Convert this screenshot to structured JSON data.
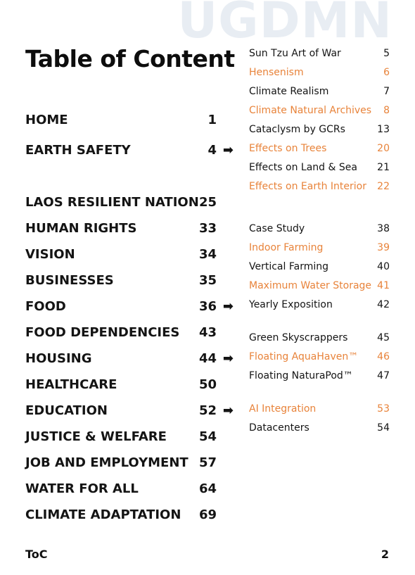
{
  "watermark": "UGDMN",
  "title": "Table of Content",
  "arrow_glyph": "➡",
  "left_items": [
    {
      "label": "HOME",
      "page": "1"
    },
    {
      "label": "EARTH SAFETY",
      "page": "4"
    },
    {
      "label": "LAOS RESILIENT NATION",
      "page": "25"
    },
    {
      "label": "HUMAN RIGHTS",
      "page": "33"
    },
    {
      "label": "VISION",
      "page": "34"
    },
    {
      "label": "BUSINESSES",
      "page": "35"
    },
    {
      "label": "FOOD",
      "page": "36"
    },
    {
      "label": "FOOD DEPENDENCIES",
      "page": "43"
    },
    {
      "label": "HOUSING",
      "page": "44"
    },
    {
      "label": "HEALTHCARE",
      "page": "50"
    },
    {
      "label": "EDUCATION",
      "page": "52"
    },
    {
      "label": "JUSTICE & WELFARE",
      "page": "54"
    },
    {
      "label": "JOB AND EMPLOYMENT",
      "page": "57"
    },
    {
      "label": "WATER FOR ALL",
      "page": "64"
    },
    {
      "label": "CLIMATE ADAPTATION",
      "page": "69"
    }
  ],
  "right_items": [
    {
      "label": "Sun Tzu Art of War",
      "page": "5"
    },
    {
      "label": "Hensenism",
      "page": "6"
    },
    {
      "label": "Climate Realism",
      "page": "7"
    },
    {
      "label": "Climate Natural Archives",
      "page": "8"
    },
    {
      "label": "Cataclysm by GCRs",
      "page": "13"
    },
    {
      "label": "Effects on Trees",
      "page": "20"
    },
    {
      "label": "Effects on Land & Sea",
      "page": "21"
    },
    {
      "label": "Effects on Earth Interior",
      "page": "22"
    },
    {
      "label": "Case Study",
      "page": "38"
    },
    {
      "label": "Indoor Farming",
      "page": "39"
    },
    {
      "label": "Vertical Farming",
      "page": "40"
    },
    {
      "label": "Maximum Water Storage",
      "page": "41"
    },
    {
      "label": "Yearly Exposition",
      "page": "42"
    },
    {
      "label": "Green Skyscrappers",
      "page": "45"
    },
    {
      "label": "Floating AquaHaven™",
      "page": "46"
    },
    {
      "label": "Floating NaturaPod™",
      "page": "47"
    },
    {
      "label": "AI Integration",
      "page": "53"
    },
    {
      "label": "Datacenters",
      "page": "54"
    }
  ],
  "footer": {
    "left": "ToC",
    "right": "2"
  },
  "colors": {
    "accent": "#e8833a",
    "text": "#141414",
    "watermark": "#e8edf3"
  }
}
